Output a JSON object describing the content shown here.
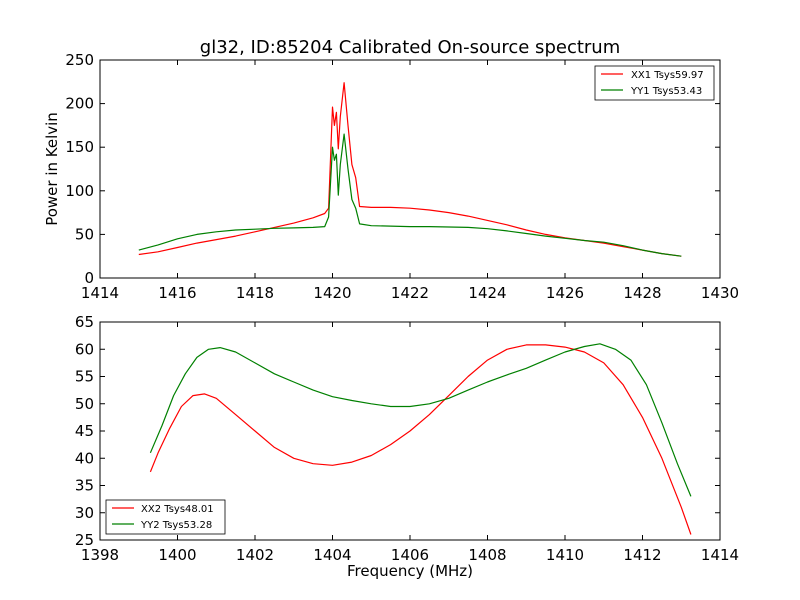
{
  "chart_data": [
    {
      "type": "line",
      "title": "gl32, ID:85204 Calibrated On-source spectrum",
      "xlabel": "",
      "ylabel": "Power in Kelvin",
      "xlim": [
        1414,
        1430
      ],
      "ylim": [
        0,
        250
      ],
      "xticks": [
        "1414",
        "1416",
        "1418",
        "1420",
        "1422",
        "1424",
        "1426",
        "1428",
        "1430"
      ],
      "yticks": [
        "0",
        "50",
        "100",
        "150",
        "200",
        "250"
      ],
      "grid": false,
      "legend_position": "top-right",
      "series": [
        {
          "name": "XX1 Tsys59.97",
          "color": "#ff0000",
          "points": [
            [
              1415.0,
              27
            ],
            [
              1415.5,
              30
            ],
            [
              1416.0,
              35
            ],
            [
              1416.5,
              40
            ],
            [
              1417.0,
              44
            ],
            [
              1417.5,
              48
            ],
            [
              1418.0,
              53
            ],
            [
              1418.5,
              58
            ],
            [
              1419.0,
              63
            ],
            [
              1419.5,
              69
            ],
            [
              1419.8,
              74
            ],
            [
              1419.9,
              80
            ],
            [
              1420.0,
              196
            ],
            [
              1420.05,
              175
            ],
            [
              1420.1,
              190
            ],
            [
              1420.15,
              148
            ],
            [
              1420.2,
              185
            ],
            [
              1420.3,
              224
            ],
            [
              1420.4,
              175
            ],
            [
              1420.5,
              130
            ],
            [
              1420.6,
              115
            ],
            [
              1420.7,
              82
            ],
            [
              1421.0,
              81
            ],
            [
              1421.5,
              81
            ],
            [
              1422.0,
              80
            ],
            [
              1422.5,
              78
            ],
            [
              1423.0,
              75
            ],
            [
              1423.5,
              71
            ],
            [
              1424.0,
              66
            ],
            [
              1424.5,
              61
            ],
            [
              1425.0,
              55
            ],
            [
              1425.5,
              50
            ],
            [
              1426.0,
              46
            ],
            [
              1426.5,
              43
            ],
            [
              1427.0,
              40
            ],
            [
              1427.5,
              36
            ],
            [
              1428.0,
              32
            ],
            [
              1428.5,
              28
            ],
            [
              1429.0,
              25
            ]
          ]
        },
        {
          "name": "YY1 Tsys53.43",
          "color": "#008000",
          "points": [
            [
              1415.0,
              32
            ],
            [
              1415.5,
              38
            ],
            [
              1416.0,
              45
            ],
            [
              1416.5,
              50
            ],
            [
              1417.0,
              53
            ],
            [
              1417.5,
              55
            ],
            [
              1418.0,
              56
            ],
            [
              1418.5,
              57
            ],
            [
              1419.0,
              57.5
            ],
            [
              1419.5,
              58
            ],
            [
              1419.8,
              59
            ],
            [
              1419.9,
              70
            ],
            [
              1420.0,
              150
            ],
            [
              1420.05,
              135
            ],
            [
              1420.1,
              142
            ],
            [
              1420.15,
              95
            ],
            [
              1420.2,
              130
            ],
            [
              1420.3,
              165
            ],
            [
              1420.4,
              125
            ],
            [
              1420.5,
              90
            ],
            [
              1420.6,
              80
            ],
            [
              1420.7,
              62
            ],
            [
              1421.0,
              60
            ],
            [
              1421.5,
              59.5
            ],
            [
              1422.0,
              59
            ],
            [
              1422.5,
              59
            ],
            [
              1423.0,
              58.5
            ],
            [
              1423.5,
              58
            ],
            [
              1424.0,
              56.5
            ],
            [
              1424.5,
              54
            ],
            [
              1425.0,
              51
            ],
            [
              1425.5,
              48
            ],
            [
              1426.0,
              45.5
            ],
            [
              1426.5,
              43
            ],
            [
              1427.0,
              41
            ],
            [
              1427.5,
              37
            ],
            [
              1428.0,
              32
            ],
            [
              1428.5,
              28
            ],
            [
              1429.0,
              25
            ]
          ]
        }
      ]
    },
    {
      "type": "line",
      "title": "",
      "xlabel": "Frequency (MHz)",
      "ylabel": "",
      "xlim": [
        1398,
        1414
      ],
      "ylim": [
        25,
        65
      ],
      "xticks": [
        "1398",
        "1400",
        "1402",
        "1404",
        "1406",
        "1408",
        "1410",
        "1412",
        "1414"
      ],
      "yticks": [
        "25",
        "30",
        "35",
        "40",
        "45",
        "50",
        "55",
        "60",
        "65"
      ],
      "grid": false,
      "legend_position": "bottom-left",
      "series": [
        {
          "name": "XX2 Tsys48.01",
          "color": "#ff0000",
          "points": [
            [
              1399.3,
              37.5
            ],
            [
              1399.5,
              41
            ],
            [
              1399.8,
              45.5
            ],
            [
              1400.1,
              49.5
            ],
            [
              1400.4,
              51.5
            ],
            [
              1400.7,
              51.8
            ],
            [
              1401.0,
              51
            ],
            [
              1401.5,
              48
            ],
            [
              1402.0,
              45
            ],
            [
              1402.5,
              42
            ],
            [
              1403.0,
              40
            ],
            [
              1403.5,
              39
            ],
            [
              1404.0,
              38.7
            ],
            [
              1404.5,
              39.3
            ],
            [
              1405.0,
              40.5
            ],
            [
              1405.5,
              42.5
            ],
            [
              1406.0,
              45
            ],
            [
              1406.5,
              48
            ],
            [
              1407.0,
              51.5
            ],
            [
              1407.5,
              55
            ],
            [
              1408.0,
              58
            ],
            [
              1408.5,
              60
            ],
            [
              1409.0,
              60.8
            ],
            [
              1409.5,
              60.8
            ],
            [
              1410.0,
              60.4
            ],
            [
              1410.5,
              59.5
            ],
            [
              1411.0,
              57.5
            ],
            [
              1411.5,
              53.5
            ],
            [
              1412.0,
              47.5
            ],
            [
              1412.5,
              40
            ],
            [
              1413.0,
              31
            ],
            [
              1413.25,
              26
            ]
          ]
        },
        {
          "name": "YY2 Tsys53.28",
          "color": "#008000",
          "points": [
            [
              1399.3,
              41
            ],
            [
              1399.6,
              46
            ],
            [
              1399.9,
              51.5
            ],
            [
              1400.2,
              55.5
            ],
            [
              1400.5,
              58.5
            ],
            [
              1400.8,
              60
            ],
            [
              1401.1,
              60.3
            ],
            [
              1401.5,
              59.5
            ],
            [
              1402.0,
              57.5
            ],
            [
              1402.5,
              55.5
            ],
            [
              1403.0,
              54
            ],
            [
              1403.5,
              52.5
            ],
            [
              1404.0,
              51.3
            ],
            [
              1404.5,
              50.6
            ],
            [
              1405.0,
              50
            ],
            [
              1405.5,
              49.5
            ],
            [
              1406.0,
              49.5
            ],
            [
              1406.5,
              50
            ],
            [
              1407.0,
              51
            ],
            [
              1407.5,
              52.5
            ],
            [
              1408.0,
              54
            ],
            [
              1408.5,
              55.3
            ],
            [
              1409.0,
              56.5
            ],
            [
              1409.5,
              58
            ],
            [
              1410.0,
              59.5
            ],
            [
              1410.5,
              60.5
            ],
            [
              1410.9,
              61
            ],
            [
              1411.3,
              60
            ],
            [
              1411.7,
              58
            ],
            [
              1412.1,
              53.5
            ],
            [
              1412.5,
              46.5
            ],
            [
              1412.9,
              39
            ],
            [
              1413.25,
              33
            ]
          ]
        }
      ]
    }
  ]
}
